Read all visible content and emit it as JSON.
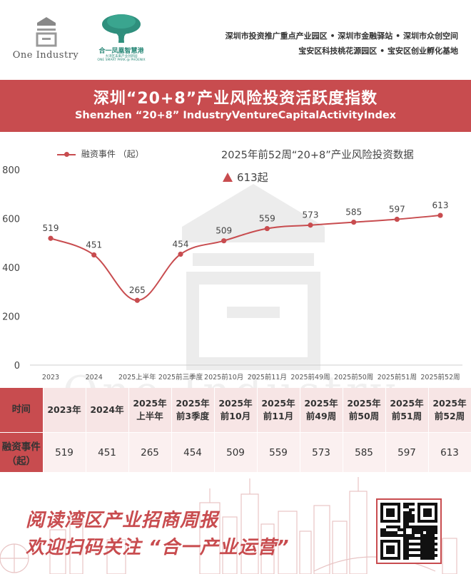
{
  "brand": {
    "one_industry": "One Industry",
    "partner_cn": "合一凤凰智慧港",
    "partner_sub_cn": "大湾区未来产业创新园",
    "partner_en": "ONE SMART PARK @ PHOENIX"
  },
  "places": {
    "line1": "深圳市投资推广重点产业园区 • 深圳市金融驿站 • 深圳市众创空间",
    "line2": "宝安区科技桃花源园区 • 宝安区创业孵化基地"
  },
  "banner": {
    "title_cn": "深圳“20+8”产业风险投资活跃度指数",
    "title_en": "Shenzhen “20+8” IndustryVentureCapitalActivityIndex"
  },
  "chart_data": {
    "type": "line",
    "categories": [
      "2023",
      "2024",
      "2025上半年",
      "2025前三季度",
      "2025前10月",
      "2025前11月",
      "2025前49周",
      "2025前50周",
      "2025前51周",
      "2025前52周"
    ],
    "series": [
      {
        "name": "融资事件 （起）",
        "values": [
          519,
          451,
          265,
          454,
          509,
          559,
          573,
          585,
          597,
          613
        ]
      }
    ],
    "yticks": [
      "0",
      "200",
      "400",
      "600",
      "800"
    ],
    "ylim": [
      0,
      800
    ],
    "annotation_title": "2025年前52周“20+8”产业风险投资数据",
    "annotation_value": "613起",
    "color": "#c84c4f"
  },
  "table": {
    "header_label": "时间",
    "value_label": "融资事件（起）",
    "columns": [
      "2023年",
      "2024年",
      "2025年上半年",
      "2025年前3季度",
      "2025年前10月",
      "2025年前11月",
      "2025年前49周",
      "2025年前50周",
      "2025年前51周",
      "2025年前52周"
    ],
    "values": [
      "519",
      "451",
      "265",
      "454",
      "509",
      "559",
      "573",
      "585",
      "597",
      "613"
    ]
  },
  "watermark": "One Industry",
  "footer": {
    "line1": "阅读湾区产业招商周报",
    "line2": "欢迎扫码关注 “合一产业运营”"
  }
}
